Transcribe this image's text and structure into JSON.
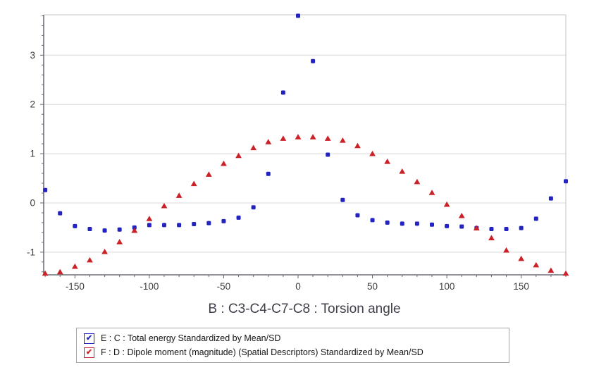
{
  "chart_data": {
    "type": "scatter",
    "title": "",
    "xlabel": "B : C3-C4-C7-C8 : Torsion angle",
    "ylabel": "",
    "xlim": [
      -171,
      180
    ],
    "ylim": [
      -1.46,
      3.82
    ],
    "x_major_ticks": [
      -150,
      -100,
      -50,
      0,
      50,
      100,
      150
    ],
    "x_minor_step": 10,
    "y_major_ticks": [
      -1,
      0,
      1,
      2,
      3
    ],
    "y_minor_step": 0.2,
    "grid": "horizontal-major-only",
    "legend_position": "bottom",
    "x": [
      -170,
      -160,
      -150,
      -140,
      -130,
      -120,
      -110,
      -100,
      -90,
      -80,
      -70,
      -60,
      -50,
      -40,
      -30,
      -20,
      -10,
      0,
      10,
      20,
      30,
      40,
      50,
      60,
      70,
      80,
      90,
      100,
      110,
      120,
      130,
      140,
      150,
      160,
      170,
      180
    ],
    "series": [
      {
        "name": "E : C : Total energy Standardized by Mean/SD",
        "marker": "square",
        "color": "#2323bf",
        "values": [
          0.26,
          -0.21,
          -0.47,
          -0.53,
          -0.56,
          -0.54,
          -0.5,
          -0.45,
          -0.45,
          -0.45,
          -0.43,
          -0.41,
          -0.37,
          -0.3,
          -0.09,
          0.59,
          2.24,
          3.8,
          2.88,
          0.98,
          0.06,
          -0.25,
          -0.35,
          -0.4,
          -0.42,
          -0.42,
          -0.44,
          -0.47,
          -0.48,
          -0.51,
          -0.53,
          -0.53,
          -0.51,
          -0.32,
          0.09,
          0.44
        ]
      },
      {
        "name": "F : D : Dipole moment (magnitude) (Spatial Descriptors) Standardized by Mean/SD",
        "marker": "triangle",
        "color": "#cc2127",
        "values": [
          -1.43,
          -1.4,
          -1.29,
          -1.16,
          -0.99,
          -0.79,
          -0.56,
          -0.32,
          -0.06,
          0.15,
          0.39,
          0.58,
          0.8,
          0.96,
          1.12,
          1.24,
          1.31,
          1.34,
          1.34,
          1.31,
          1.27,
          1.16,
          1.0,
          0.84,
          0.64,
          0.43,
          0.21,
          -0.03,
          -0.26,
          -0.51,
          -0.71,
          -0.96,
          -1.13,
          -1.26,
          -1.37,
          -1.43
        ]
      }
    ]
  },
  "legend": {
    "items": [
      {
        "label": "E : C : Total energy Standardized by Mean/SD",
        "checked": true,
        "checkmark": "✔",
        "color": "#2323bf"
      },
      {
        "label": "F : D : Dipole moment (magnitude) (Spatial Descriptors) Standardized by Mean/SD",
        "checked": true,
        "checkmark": "✔",
        "color": "#cc2127"
      }
    ]
  },
  "colors": {
    "axis": "#50505e",
    "frame": "#c6c6c6",
    "grid": "#d9d9d9",
    "tick": "#666666",
    "tick_label": "#3c3c3c",
    "axis_title": "#3f3f4b"
  }
}
